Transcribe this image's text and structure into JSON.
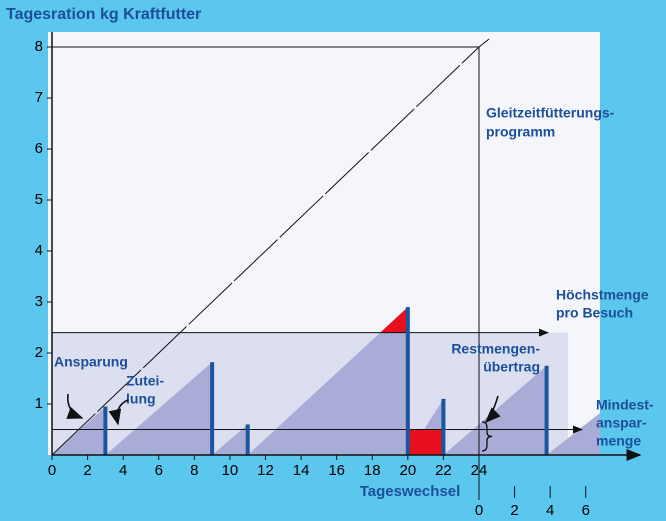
{
  "chart_data": {
    "type": "feeding",
    "title": "Tagesration kg Kraftfutter",
    "xlabel": "Tageswechsel",
    "xlim": [
      0,
      24
    ],
    "ylim": [
      0,
      8
    ],
    "xticks": [
      0,
      2,
      4,
      6,
      8,
      10,
      12,
      14,
      16,
      18,
      20,
      22,
      24
    ],
    "next_day_ticks": [
      0,
      2,
      4,
      6
    ],
    "yticks": [
      1,
      2,
      3,
      4,
      5,
      6,
      7,
      8
    ],
    "daily_ration": 8,
    "max_per_visit": 2.4,
    "min_saving": 0.5,
    "allocations": {
      "x": [
        3,
        9,
        11,
        20,
        22,
        27.8
      ],
      "values": [
        0.95,
        1.82,
        0.6,
        2.9,
        1.1,
        1.75
      ],
      "color": "#1a56a0"
    },
    "ramps": [
      [
        0,
        3,
        0.95
      ],
      [
        3,
        9,
        1.82
      ],
      [
        9,
        11,
        0.6
      ],
      [
        11,
        20,
        2.9
      ],
      [
        20,
        22,
        1.1
      ],
      [
        22,
        27.8,
        1.75
      ],
      [
        27.8,
        30.9,
        0.85
      ]
    ],
    "deficit": [
      20,
      22
    ],
    "carryover": [
      24,
      0.65
    ],
    "annotations": {
      "program": [
        "Gleitzeitfütterungs-",
        "programm"
      ],
      "max": [
        "Höchstmenge",
        "pro Besuch"
      ],
      "rest": [
        "Restmengen-",
        "übertrag"
      ],
      "saving": [
        "Ansparung"
      ],
      "allot": [
        "Zutei-",
        "lung"
      ],
      "min": [
        "Mindest-",
        "anspar-",
        "menge"
      ]
    }
  }
}
